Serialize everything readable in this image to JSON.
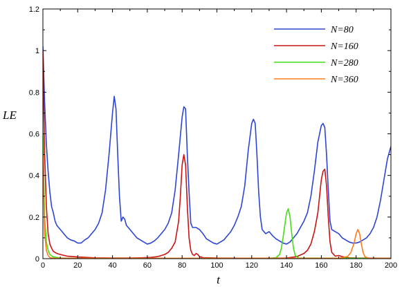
{
  "chart_data": {
    "type": "line",
    "title": "",
    "xlabel": "t",
    "ylabel": "LE",
    "xlim": [
      0,
      200
    ],
    "ylim": [
      0,
      1.2
    ],
    "x_ticks": [
      0,
      20,
      40,
      60,
      80,
      100,
      120,
      140,
      160,
      180,
      200
    ],
    "y_ticks": [
      0,
      0.2,
      0.4,
      0.6,
      0.8,
      1,
      1.2
    ],
    "x_tick_labels": [
      "0",
      "20",
      "40",
      "60",
      "80",
      "100",
      "120",
      "140",
      "160",
      "180",
      "200"
    ],
    "y_tick_labels": [
      "0",
      "0.2",
      "0.4",
      "0.6",
      "0.8",
      "1",
      "1.2"
    ],
    "grid": false,
    "legend": "top-right",
    "series": [
      {
        "name": "N=80",
        "color": "#2b44d6",
        "points": [
          [
            0,
            1.02
          ],
          [
            1,
            0.75
          ],
          [
            2,
            0.55
          ],
          [
            3,
            0.42
          ],
          [
            4,
            0.32
          ],
          [
            5,
            0.25
          ],
          [
            6,
            0.22
          ],
          [
            7,
            0.18
          ],
          [
            8,
            0.16
          ],
          [
            10,
            0.14
          ],
          [
            12,
            0.12
          ],
          [
            14,
            0.1
          ],
          [
            16,
            0.09
          ],
          [
            18,
            0.085
          ],
          [
            20,
            0.075
          ],
          [
            22,
            0.075
          ],
          [
            24,
            0.09
          ],
          [
            26,
            0.1
          ],
          [
            28,
            0.12
          ],
          [
            30,
            0.14
          ],
          [
            32,
            0.17
          ],
          [
            34,
            0.22
          ],
          [
            36,
            0.33
          ],
          [
            38,
            0.5
          ],
          [
            40,
            0.7
          ],
          [
            41,
            0.78
          ],
          [
            42,
            0.72
          ],
          [
            43,
            0.5
          ],
          [
            44,
            0.3
          ],
          [
            45,
            0.18
          ],
          [
            46,
            0.2
          ],
          [
            47,
            0.19
          ],
          [
            48,
            0.16
          ],
          [
            50,
            0.14
          ],
          [
            52,
            0.12
          ],
          [
            54,
            0.1
          ],
          [
            56,
            0.09
          ],
          [
            58,
            0.08
          ],
          [
            60,
            0.07
          ],
          [
            62,
            0.075
          ],
          [
            64,
            0.085
          ],
          [
            66,
            0.1
          ],
          [
            68,
            0.12
          ],
          [
            70,
            0.14
          ],
          [
            72,
            0.17
          ],
          [
            74,
            0.22
          ],
          [
            76,
            0.33
          ],
          [
            78,
            0.5
          ],
          [
            80,
            0.68
          ],
          [
            81,
            0.73
          ],
          [
            82,
            0.72
          ],
          [
            83,
            0.5
          ],
          [
            84,
            0.32
          ],
          [
            85,
            0.17
          ],
          [
            86,
            0.15
          ],
          [
            88,
            0.15
          ],
          [
            90,
            0.14
          ],
          [
            92,
            0.12
          ],
          [
            94,
            0.095
          ],
          [
            96,
            0.085
          ],
          [
            98,
            0.075
          ],
          [
            100,
            0.07
          ],
          [
            102,
            0.08
          ],
          [
            104,
            0.09
          ],
          [
            106,
            0.11
          ],
          [
            108,
            0.13
          ],
          [
            110,
            0.16
          ],
          [
            112,
            0.2
          ],
          [
            114,
            0.25
          ],
          [
            116,
            0.35
          ],
          [
            118,
            0.52
          ],
          [
            120,
            0.65
          ],
          [
            121,
            0.67
          ],
          [
            122,
            0.65
          ],
          [
            123,
            0.5
          ],
          [
            124,
            0.32
          ],
          [
            125,
            0.2
          ],
          [
            126,
            0.14
          ],
          [
            128,
            0.12
          ],
          [
            130,
            0.13
          ],
          [
            132,
            0.11
          ],
          [
            134,
            0.095
          ],
          [
            136,
            0.085
          ],
          [
            138,
            0.075
          ],
          [
            140,
            0.07
          ],
          [
            142,
            0.08
          ],
          [
            144,
            0.1
          ],
          [
            146,
            0.12
          ],
          [
            148,
            0.15
          ],
          [
            150,
            0.18
          ],
          [
            152,
            0.22
          ],
          [
            154,
            0.3
          ],
          [
            156,
            0.42
          ],
          [
            158,
            0.56
          ],
          [
            160,
            0.64
          ],
          [
            161,
            0.65
          ],
          [
            162,
            0.63
          ],
          [
            163,
            0.5
          ],
          [
            164,
            0.33
          ],
          [
            165,
            0.18
          ],
          [
            166,
            0.14
          ],
          [
            168,
            0.13
          ],
          [
            170,
            0.12
          ],
          [
            172,
            0.1
          ],
          [
            174,
            0.09
          ],
          [
            176,
            0.08
          ],
          [
            178,
            0.075
          ],
          [
            180,
            0.075
          ],
          [
            182,
            0.08
          ],
          [
            184,
            0.09
          ],
          [
            186,
            0.1
          ],
          [
            188,
            0.12
          ],
          [
            190,
            0.15
          ],
          [
            192,
            0.2
          ],
          [
            194,
            0.28
          ],
          [
            196,
            0.38
          ],
          [
            198,
            0.48
          ],
          [
            200,
            0.54
          ]
        ]
      },
      {
        "name": "N=160",
        "color": "#cc1111",
        "points": [
          [
            0,
            1.0
          ],
          [
            1,
            0.5
          ],
          [
            2,
            0.25
          ],
          [
            3,
            0.12
          ],
          [
            4,
            0.07
          ],
          [
            5,
            0.05
          ],
          [
            6,
            0.035
          ],
          [
            8,
            0.025
          ],
          [
            10,
            0.02
          ],
          [
            14,
            0.012
          ],
          [
            20,
            0.008
          ],
          [
            30,
            0.004
          ],
          [
            40,
            0.003
          ],
          [
            50,
            0.003
          ],
          [
            56,
            0.004
          ],
          [
            62,
            0.006
          ],
          [
            66,
            0.01
          ],
          [
            70,
            0.02
          ],
          [
            72,
            0.03
          ],
          [
            74,
            0.05
          ],
          [
            76,
            0.08
          ],
          [
            78,
            0.18
          ],
          [
            79,
            0.3
          ],
          [
            80,
            0.45
          ],
          [
            81,
            0.5
          ],
          [
            82,
            0.45
          ],
          [
            83,
            0.25
          ],
          [
            84,
            0.1
          ],
          [
            85,
            0.04
          ],
          [
            86,
            0.02
          ],
          [
            87,
            0.015
          ],
          [
            88,
            0.025
          ],
          [
            89,
            0.02
          ],
          [
            90,
            0.01
          ],
          [
            92,
            0.005
          ],
          [
            100,
            0.003
          ],
          [
            120,
            0.002
          ],
          [
            140,
            0.003
          ],
          [
            146,
            0.01
          ],
          [
            150,
            0.025
          ],
          [
            152,
            0.04
          ],
          [
            154,
            0.07
          ],
          [
            156,
            0.13
          ],
          [
            158,
            0.22
          ],
          [
            159,
            0.3
          ],
          [
            160,
            0.38
          ],
          [
            161,
            0.42
          ],
          [
            162,
            0.43
          ],
          [
            163,
            0.35
          ],
          [
            164,
            0.2
          ],
          [
            165,
            0.08
          ],
          [
            166,
            0.03
          ],
          [
            168,
            0.012
          ],
          [
            170,
            0.015
          ],
          [
            172,
            0.01
          ],
          [
            174,
            0.006
          ],
          [
            176,
            0.004
          ],
          [
            180,
            0.003
          ],
          [
            200,
            0.002
          ]
        ]
      },
      {
        "name": "N=280",
        "color": "#44dd11",
        "points": [
          [
            0,
            0.6
          ],
          [
            1,
            0.2
          ],
          [
            2,
            0.08
          ],
          [
            3,
            0.04
          ],
          [
            4,
            0.02
          ],
          [
            6,
            0.008
          ],
          [
            10,
            0.003
          ],
          [
            20,
            0.001
          ],
          [
            130,
            0.001
          ],
          [
            134,
            0.005
          ],
          [
            136,
            0.02
          ],
          [
            137,
            0.05
          ],
          [
            138,
            0.1
          ],
          [
            139,
            0.16
          ],
          [
            140,
            0.22
          ],
          [
            141,
            0.24
          ],
          [
            142,
            0.2
          ],
          [
            143,
            0.12
          ],
          [
            144,
            0.05
          ],
          [
            145,
            0.015
          ],
          [
            147,
            0.003
          ],
          [
            200,
            0.001
          ]
        ]
      },
      {
        "name": "N=360",
        "color": "#ff7a1a",
        "points": [
          [
            0,
            0.5
          ],
          [
            1,
            0.12
          ],
          [
            2,
            0.04
          ],
          [
            3,
            0.015
          ],
          [
            4,
            0.005
          ],
          [
            6,
            0.002
          ],
          [
            170,
            0.002
          ],
          [
            175,
            0.01
          ],
          [
            177,
            0.03
          ],
          [
            179,
            0.08
          ],
          [
            180,
            0.12
          ],
          [
            181,
            0.14
          ],
          [
            182,
            0.12
          ],
          [
            183,
            0.07
          ],
          [
            184,
            0.03
          ],
          [
            185,
            0.01
          ],
          [
            187,
            0.002
          ],
          [
            200,
            0.001
          ]
        ]
      }
    ]
  }
}
